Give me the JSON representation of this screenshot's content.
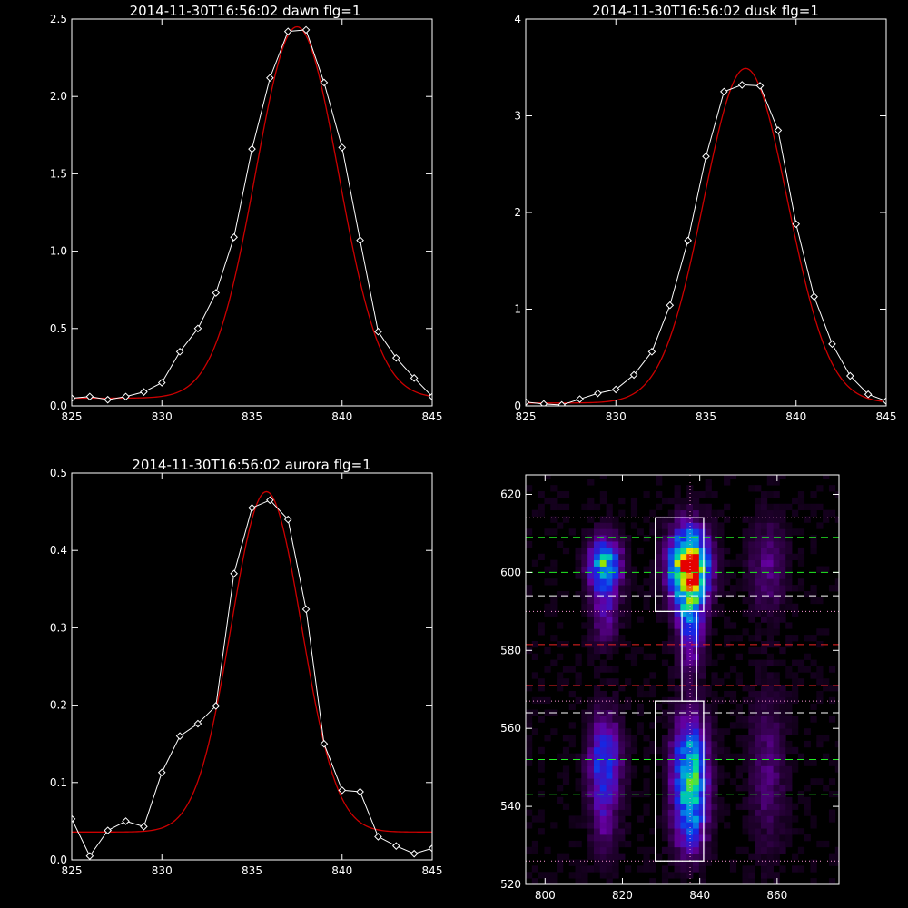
{
  "colors": {
    "background": "#000000",
    "axes": "#ffffff",
    "observed": "#ffffff",
    "fit": "#cc0000"
  },
  "chart_data": [
    {
      "type": "line",
      "title": "2014-11-30T16:56:02 dawn flg=1",
      "xlim": [
        825,
        845
      ],
      "ylim": [
        0,
        2.5
      ],
      "xticks": [
        825,
        830,
        835,
        840,
        845
      ],
      "yticks": [
        0.0,
        0.5,
        1.0,
        1.5,
        2.0,
        2.5
      ],
      "yticklabels": [
        "0.0",
        "0.5",
        "1.0",
        "1.5",
        "2.0",
        "2.5"
      ],
      "series": [
        {
          "role": "observed",
          "marker": "diamond",
          "x": [
            825,
            826,
            827,
            828,
            829,
            830,
            831,
            832,
            833,
            834,
            835,
            836,
            837,
            838,
            839,
            840,
            841,
            842,
            843,
            844,
            845
          ],
          "y": [
            0.05,
            0.06,
            0.04,
            0.06,
            0.09,
            0.15,
            0.35,
            0.5,
            0.73,
            1.09,
            1.66,
            2.12,
            2.42,
            2.43,
            2.09,
            1.67,
            1.07,
            0.48,
            0.31,
            0.18,
            0.06
          ]
        },
        {
          "role": "fit",
          "model": "gaussian",
          "center": 837.5,
          "amplitude": 2.4,
          "sigma": 2.3,
          "offset": 0.05
        }
      ]
    },
    {
      "type": "line",
      "title": "2014-11-30T16:56:02 dusk flg=1",
      "xlim": [
        825,
        845
      ],
      "ylim": [
        0,
        4
      ],
      "xticks": [
        825,
        830,
        835,
        840,
        845
      ],
      "yticks": [
        0,
        1,
        2,
        3,
        4
      ],
      "yticklabels": [
        "0",
        "1",
        "2",
        "3",
        "4"
      ],
      "series": [
        {
          "role": "observed",
          "marker": "diamond",
          "x": [
            825,
            826,
            827,
            828,
            829,
            830,
            831,
            832,
            833,
            834,
            835,
            836,
            837,
            838,
            839,
            840,
            841,
            842,
            843,
            844,
            845
          ],
          "y": [
            0.04,
            0.02,
            0.01,
            0.07,
            0.13,
            0.17,
            0.32,
            0.56,
            1.04,
            1.71,
            2.58,
            3.25,
            3.32,
            3.31,
            2.85,
            1.88,
            1.13,
            0.64,
            0.31,
            0.12,
            0.05
          ]
        },
        {
          "role": "fit",
          "model": "gaussian",
          "center": 837.2,
          "amplitude": 3.46,
          "sigma": 2.32,
          "offset": 0.03
        }
      ]
    },
    {
      "type": "line",
      "title": "2014-11-30T16:56:02 aurora flg=1",
      "xlim": [
        825,
        845
      ],
      "ylim": [
        0,
        0.5
      ],
      "xticks": [
        825,
        830,
        835,
        840,
        845
      ],
      "yticks": [
        0.0,
        0.1,
        0.2,
        0.3,
        0.4,
        0.5
      ],
      "yticklabels": [
        "0.0",
        "0.1",
        "0.2",
        "0.3",
        "0.4",
        "0.5"
      ],
      "series": [
        {
          "role": "observed",
          "marker": "diamond",
          "x": [
            825,
            826,
            827,
            828,
            829,
            830,
            831,
            832,
            833,
            834,
            835,
            836,
            837,
            838,
            839,
            840,
            841,
            842,
            843,
            844,
            845
          ],
          "y": [
            0.053,
            0.005,
            0.038,
            0.05,
            0.043,
            0.113,
            0.16,
            0.176,
            0.199,
            0.37,
            0.455,
            0.465,
            0.44,
            0.324,
            0.15,
            0.09,
            0.088,
            0.03,
            0.018,
            0.008,
            0.015
          ]
        },
        {
          "role": "fit",
          "model": "gaussian",
          "center": 835.8,
          "amplitude": 0.44,
          "sigma": 1.95,
          "offset": 0.036
        }
      ]
    },
    {
      "type": "heatmap",
      "title": "",
      "xlim": [
        795,
        876
      ],
      "ylim": [
        520,
        625
      ],
      "xticks": [
        800,
        820,
        840,
        860
      ],
      "yticks": [
        520,
        540,
        560,
        580,
        600,
        620
      ],
      "blobs": [
        {
          "cx": 837.3,
          "cy": 601.5,
          "sx": 3.4,
          "sy": 6.5,
          "amp": 1.0
        },
        {
          "cx": 837.5,
          "cy": 587,
          "sx": 2.3,
          "sy": 8,
          "amp": 0.35
        },
        {
          "cx": 837.5,
          "cy": 549,
          "sx": 3.0,
          "sy": 9,
          "amp": 0.62
        },
        {
          "cx": 837.5,
          "cy": 535,
          "sx": 3.0,
          "sy": 6,
          "amp": 0.25
        },
        {
          "cx": 815.5,
          "cy": 602,
          "sx": 2.8,
          "sy": 4.5,
          "amp": 0.6
        },
        {
          "cx": 815.5,
          "cy": 590,
          "sx": 2.4,
          "sy": 6,
          "amp": 0.2
        },
        {
          "cx": 815.5,
          "cy": 551,
          "sx": 2.8,
          "sy": 8,
          "amp": 0.4
        },
        {
          "cx": 815.5,
          "cy": 535,
          "sx": 2.6,
          "sy": 6,
          "amp": 0.12
        },
        {
          "cx": 857.5,
          "cy": 602,
          "sx": 3.2,
          "sy": 8,
          "amp": 0.16
        },
        {
          "cx": 857.5,
          "cy": 550,
          "sx": 3.2,
          "sy": 14,
          "amp": 0.14
        }
      ],
      "overlays": {
        "box_top": {
          "x": [
            828.5,
            841
          ],
          "y": [
            590,
            614
          ]
        },
        "box_bottom": {
          "x": [
            828.5,
            841
          ],
          "y": [
            526,
            567
          ]
        },
        "neck": {
          "x": [
            835.4,
            839.2
          ],
          "y": [
            567,
            590
          ]
        },
        "vline_dotted": 837.5,
        "green_dashed": [
          609,
          600,
          552,
          543
        ],
        "white_dashed": [
          594,
          564
        ],
        "red_dashed": [
          581.5,
          571
        ],
        "pink_dotted": [
          614,
          590,
          576,
          567,
          526
        ]
      }
    }
  ]
}
